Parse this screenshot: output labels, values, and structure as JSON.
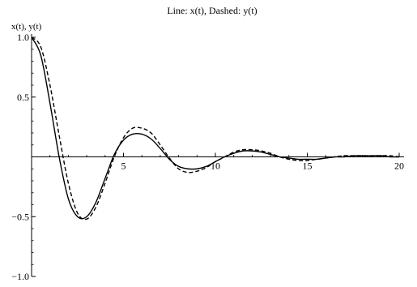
{
  "chart_data": {
    "type": "line",
    "title": "Line: x(t),  Dashed: y(t)",
    "xlabel": "",
    "ylabel": "x(t), y(t)",
    "xlim": [
      0,
      20
    ],
    "ylim": [
      -1.0,
      1.0
    ],
    "x_ticks": [
      5,
      10,
      15,
      20
    ],
    "x_tick_labels": [
      "5",
      "10",
      "15",
      "20"
    ],
    "y_ticks": [
      1.0,
      0.5,
      -0.5,
      -1.0
    ],
    "y_tick_labels": [
      "1.0",
      "0.5",
      "−0.5",
      "−1.0"
    ],
    "grid": false,
    "legend": "none",
    "series": [
      {
        "style": "solid",
        "color": "#000000",
        "x": [
          0,
          0.5,
          1,
          1.5,
          2,
          2.5,
          3,
          3.5,
          4,
          4.5,
          5,
          5.5,
          6,
          6.5,
          7,
          7.5,
          8,
          8.5,
          9,
          9.5,
          10,
          10.5,
          11,
          11.5,
          12,
          12.5,
          13,
          13.5,
          14,
          14.5,
          15,
          15.5,
          16,
          16.5,
          17,
          17.5,
          18,
          18.5,
          19,
          19.5,
          20
        ],
        "values": [
          1.0,
          0.85,
          0.45,
          0.0,
          -0.35,
          -0.5,
          -0.5,
          -0.38,
          -0.18,
          0.02,
          0.14,
          0.19,
          0.19,
          0.15,
          0.07,
          -0.02,
          -0.08,
          -0.1,
          -0.1,
          -0.08,
          -0.04,
          0.0,
          0.03,
          0.05,
          0.05,
          0.04,
          0.02,
          0.0,
          -0.01,
          -0.02,
          -0.02,
          -0.02,
          -0.01,
          0.0,
          0.0,
          0.01,
          0.01,
          0.01,
          0.01,
          0.0,
          0.0
        ]
      },
      {
        "style": "dashed",
        "color": "#000000",
        "x": [
          0,
          0.5,
          1,
          1.5,
          2,
          2.5,
          3,
          3.5,
          4,
          4.5,
          5,
          5.5,
          6,
          6.5,
          7,
          7.5,
          8,
          8.5,
          9,
          9.5,
          10,
          10.5,
          11,
          11.5,
          12,
          12.5,
          13,
          13.5,
          14,
          14.5,
          15,
          15.5,
          16,
          16.5,
          17,
          17.5,
          18,
          18.5,
          19,
          19.5,
          20
        ],
        "values": [
          1.0,
          0.92,
          0.6,
          0.18,
          -0.22,
          -0.47,
          -0.52,
          -0.42,
          -0.22,
          0.0,
          0.16,
          0.24,
          0.24,
          0.2,
          0.1,
          -0.01,
          -0.1,
          -0.13,
          -0.12,
          -0.09,
          -0.04,
          0.0,
          0.04,
          0.06,
          0.06,
          0.05,
          0.03,
          0.0,
          -0.02,
          -0.03,
          -0.03,
          -0.02,
          -0.01,
          0.0,
          0.01,
          0.01,
          0.01,
          0.01,
          0.01,
          0.01,
          0.0
        ]
      }
    ]
  }
}
